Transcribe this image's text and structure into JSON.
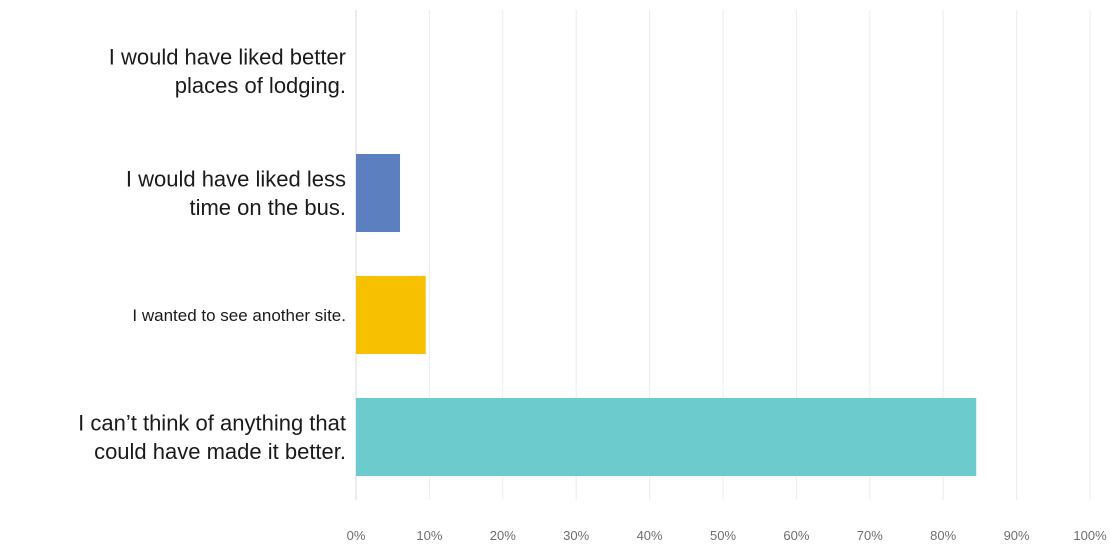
{
  "chart_data": {
    "type": "bar",
    "orientation": "horizontal",
    "categories": [
      [
        "I would have liked better",
        "places of lodging."
      ],
      [
        "I would have liked less",
        "time on the bus."
      ],
      [
        "I wanted to see another site."
      ],
      [
        "I can’t think of anything that",
        "could have made it better."
      ]
    ],
    "values": [
      0,
      6,
      9.5,
      84.5
    ],
    "colors": [
      "#5b7fbf",
      "#5b7fbf",
      "#f7c000",
      "#6ccbcc"
    ],
    "xlim": [
      0,
      100
    ],
    "xticks": [
      "0%",
      "10%",
      "20%",
      "30%",
      "40%",
      "50%",
      "60%",
      "70%",
      "80%",
      "90%",
      "100%"
    ],
    "grid": true,
    "title": "",
    "xlabel": "",
    "ylabel": ""
  }
}
